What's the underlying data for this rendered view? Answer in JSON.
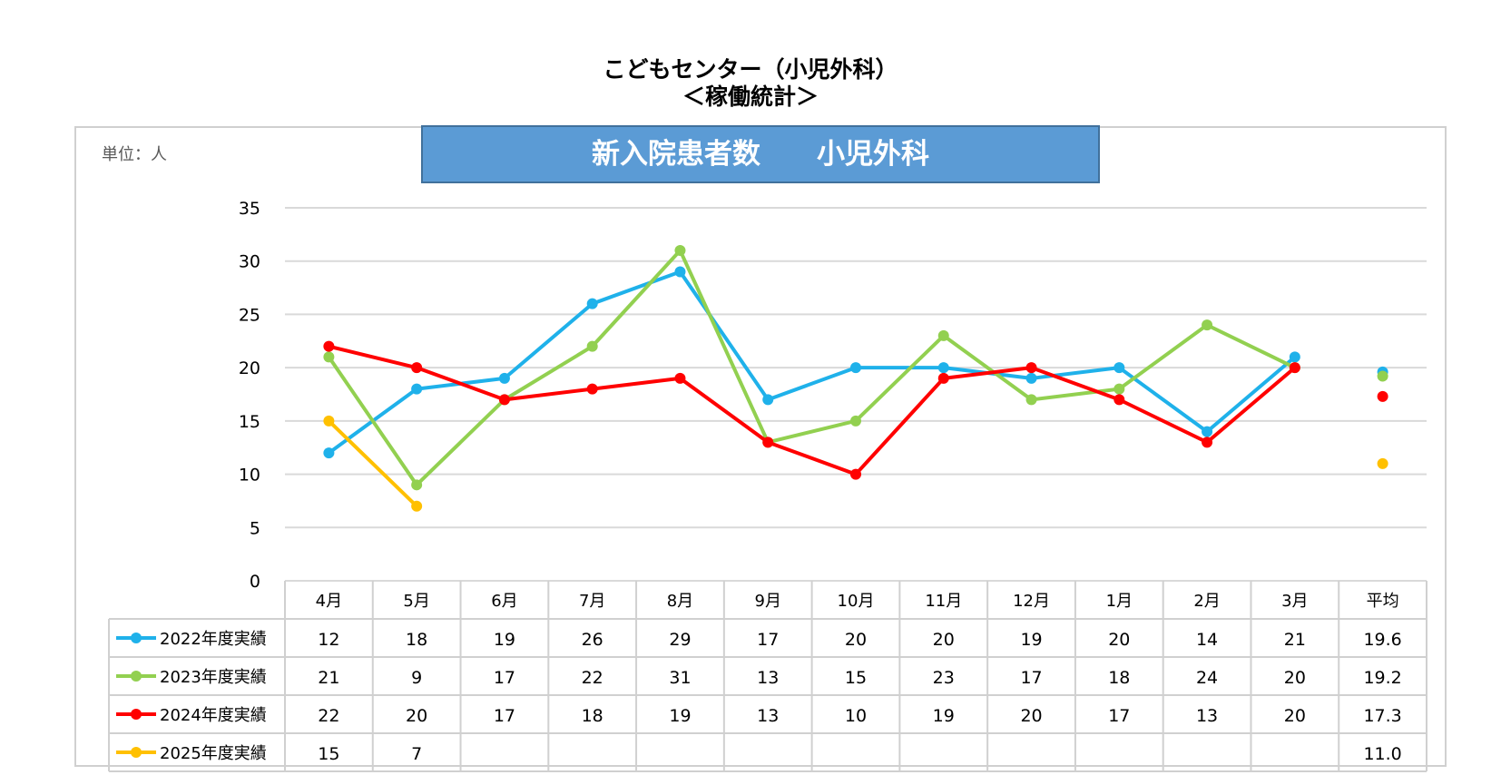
{
  "page": {
    "title_line1": "こどもセンター（小児外科）",
    "title_line2": "＜稼働統計＞"
  },
  "chart_data": {
    "type": "line",
    "title": "新入院患者数　　小児外科",
    "unit_label": "単位：人",
    "categories": [
      "4月",
      "5月",
      "6月",
      "7月",
      "8月",
      "9月",
      "10月",
      "11月",
      "12月",
      "1月",
      "2月",
      "3月"
    ],
    "average_label": "平均",
    "ylim": [
      0,
      35
    ],
    "yticks": [
      0,
      5,
      10,
      15,
      20,
      25,
      30,
      35
    ],
    "grid": true,
    "series": [
      {
        "name": "2022年度実績",
        "color": "#1fb1ea",
        "values": [
          12,
          18,
          19,
          26,
          29,
          17,
          20,
          20,
          19,
          20,
          14,
          21
        ],
        "average": 19.6,
        "average_label": "19.6"
      },
      {
        "name": "2023年度実績",
        "color": "#92d050",
        "values": [
          21,
          9,
          17,
          22,
          31,
          13,
          15,
          23,
          17,
          18,
          24,
          20
        ],
        "average": 19.2,
        "average_label": "19.2"
      },
      {
        "name": "2024年度実績",
        "color": "#ff0000",
        "values": [
          22,
          20,
          17,
          18,
          19,
          13,
          10,
          19,
          20,
          17,
          13,
          20
        ],
        "average": 17.3,
        "average_label": "17.3"
      },
      {
        "name": "2025年度実績",
        "color": "#ffc000",
        "values": [
          15,
          7,
          null,
          null,
          null,
          null,
          null,
          null,
          null,
          null,
          null,
          null
        ],
        "average": 11.0,
        "average_label": "11.0"
      }
    ]
  }
}
